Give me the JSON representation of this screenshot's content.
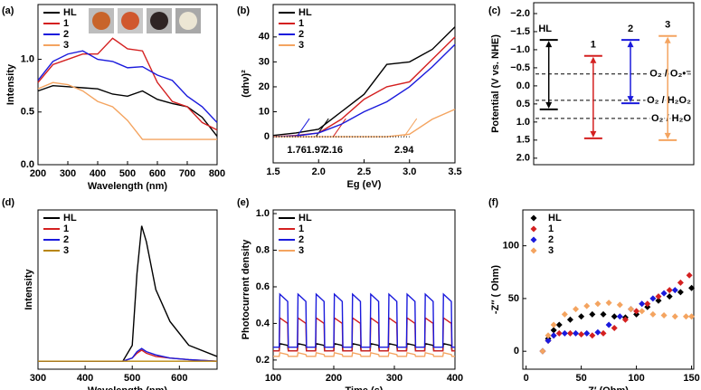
{
  "chart_data": [
    {
      "type": "line",
      "label": "(a)",
      "x_label": "Wavelength (nm)",
      "y_label": "Intensity",
      "legend": "upper left",
      "xlim": [
        200,
        800
      ],
      "ylim": [
        0,
        1.52
      ],
      "xticks": [
        200,
        300,
        400,
        500,
        600,
        700,
        800
      ],
      "yticks": [
        {
          "value": 0,
          "label": "0.0"
        },
        0.5,
        {
          "value": 1,
          "label": "1.0"
        }
      ],
      "x": [
        200,
        250,
        300,
        350,
        400,
        450,
        500,
        550,
        600,
        650,
        700,
        750,
        800
      ],
      "series": [
        {
          "name": "HL",
          "color": "#000000",
          "values": [
            0.7,
            0.75,
            0.74,
            0.73,
            0.72,
            0.67,
            0.65,
            0.7,
            0.62,
            0.58,
            0.55,
            0.45,
            0.27
          ]
        },
        {
          "name": "1",
          "color": "#d42020",
          "values": [
            0.78,
            0.95,
            1.0,
            1.05,
            1.05,
            1.2,
            1.1,
            1.08,
            0.78,
            0.6,
            0.55,
            0.4,
            0.33
          ]
        },
        {
          "name": "2",
          "color": "#1a1adc",
          "values": [
            0.8,
            0.98,
            1.05,
            1.08,
            1.0,
            0.98,
            0.92,
            0.93,
            0.85,
            0.8,
            0.65,
            0.55,
            0.4
          ]
        },
        {
          "name": "3",
          "color": "#f4a460",
          "values": [
            0.72,
            0.78,
            0.76,
            0.7,
            0.6,
            0.55,
            0.42,
            0.24,
            0.24,
            0.24,
            0.24,
            0.24,
            0.24
          ]
        }
      ]
    },
    {
      "type": "line",
      "label": "(b)",
      "x_label": "Eg (eV)",
      "y_label": "(αhν)²",
      "legend": "upper left",
      "xlim": [
        1.5,
        3.5
      ],
      "ylim": [
        -10.5,
        53
      ],
      "xticks": [
        1.5,
        {
          "value": 2,
          "label": "2.0"
        },
        2.5,
        {
          "value": 3,
          "label": "3.0"
        },
        3.5
      ],
      "yticks": [
        0,
        10,
        20,
        30,
        40
      ],
      "x": [
        1.5,
        1.75,
        2.0,
        2.25,
        2.5,
        2.75,
        3.0,
        3.25,
        3.5
      ],
      "series": [
        {
          "name": "HL",
          "color": "#000000",
          "eg": 1.97,
          "values": [
            0.5,
            1.5,
            3,
            10,
            17,
            29,
            30,
            35,
            44
          ]
        },
        {
          "name": "1",
          "color": "#d42020",
          "eg": 2.16,
          "values": [
            0,
            0.5,
            1.5,
            7,
            15,
            20,
            22,
            31,
            40
          ]
        },
        {
          "name": "2",
          "color": "#1a1adc",
          "eg": 1.76,
          "values": [
            0,
            0.3,
            1.5,
            5,
            10,
            14,
            20,
            28,
            37
          ]
        },
        {
          "name": "3",
          "color": "#f4a460",
          "eg": 2.94,
          "values": [
            0,
            0,
            0,
            0,
            0,
            0,
            1,
            7,
            11
          ]
        }
      ]
    },
    {
      "type": "energy",
      "label": "(c)",
      "y_label": "Potential (V vs. NHE)",
      "ylim": [
        2.18,
        -2.3
      ],
      "yticks": [
        {
          "value": -2,
          "label": "−2.0"
        },
        {
          "value": -1.5,
          "label": "−1.5"
        },
        {
          "value": -1,
          "label": "−1.0"
        },
        {
          "value": -0.5,
          "label": "−0.5"
        },
        {
          "value": 0,
          "label": "0.0"
        },
        0.5,
        {
          "value": 1,
          "label": "1.0"
        },
        1.5,
        {
          "value": 2,
          "label": "2.0"
        }
      ],
      "series": [
        {
          "name": "HL",
          "color": "#000000",
          "values": [
            -1.27,
            0.65
          ]
        },
        {
          "name": "1",
          "color": "#d42020",
          "values": [
            -0.83,
            1.45
          ]
        },
        {
          "name": "2",
          "color": "#1a1adc",
          "values": [
            -1.27,
            0.48
          ]
        },
        {
          "name": "3",
          "color": "#f4a460",
          "values": [
            -1.38,
            1.5
          ]
        }
      ],
      "references": [
        {
          "label": "O₂ / O₂•⁻",
          "value": -0.33
        },
        {
          "label": "O₂ / H₂O₂",
          "value": 0.4
        },
        {
          "label": "O₂ / H₂O",
          "value": 0.9
        }
      ]
    },
    {
      "type": "line",
      "label": "(d)",
      "x_label": "Wavelength (nm)",
      "y_label": "Intensity",
      "legend": "upper left",
      "xlim": [
        300,
        680
      ],
      "ylim": [
        0,
        1
      ],
      "xticks": [
        300,
        400,
        500,
        600
      ],
      "x": [
        300,
        400,
        480,
        500,
        510,
        520,
        530,
        550,
        580,
        620,
        680
      ],
      "series": [
        {
          "name": "HL",
          "color": "#000000",
          "values": [
            0.05,
            0.05,
            0.05,
            0.15,
            0.6,
            0.9,
            0.8,
            0.5,
            0.3,
            0.15,
            0.08
          ]
        },
        {
          "name": "1",
          "color": "#d42020",
          "values": [
            0.05,
            0.05,
            0.05,
            0.07,
            0.1,
            0.12,
            0.1,
            0.08,
            0.07,
            0.06,
            0.05
          ]
        },
        {
          "name": "2",
          "color": "#1a1adc",
          "values": [
            0.05,
            0.05,
            0.05,
            0.07,
            0.11,
            0.13,
            0.11,
            0.09,
            0.07,
            0.06,
            0.05
          ]
        },
        {
          "name": "3",
          "color": "#b8860b",
          "values": [
            0.05,
            0.05,
            0.05,
            0.05,
            0.05,
            0.05,
            0.05,
            0.05,
            0.05,
            0.05,
            0.05
          ]
        }
      ]
    },
    {
      "type": "line",
      "label": "(e)",
      "x_label": "Time (s)",
      "y_label": "Photocurrent density",
      "legend": "upper left",
      "xlim": [
        100,
        400
      ],
      "ylim": [
        0.15,
        1.02
      ],
      "xticks": [
        100,
        200,
        300,
        400
      ],
      "yticks": [
        0.2,
        0.4,
        0.6,
        0.8,
        {
          "value": 1,
          "label": "1.0"
        }
      ],
      "x": [
        100,
        110,
        111,
        124,
        125,
        140,
        141,
        154,
        155,
        170,
        171,
        184,
        185,
        200,
        201,
        214,
        215,
        230,
        231,
        244,
        245,
        260,
        261,
        274,
        275,
        290,
        291,
        304,
        305,
        320,
        321,
        334,
        335,
        350,
        351,
        364,
        365,
        380,
        381,
        394,
        395,
        400
      ],
      "series": [
        {
          "name": "HL",
          "color": "#000000",
          "values": [
            0.25,
            0.25,
            0.29,
            0.28,
            0.25,
            0.25,
            0.29,
            0.28,
            0.25,
            0.25,
            0.29,
            0.28,
            0.25,
            0.25,
            0.29,
            0.28,
            0.25,
            0.25,
            0.29,
            0.28,
            0.25,
            0.25,
            0.29,
            0.28,
            0.25,
            0.25,
            0.29,
            0.28,
            0.25,
            0.25,
            0.29,
            0.28,
            0.25,
            0.25,
            0.29,
            0.28,
            0.25,
            0.25,
            0.29,
            0.28,
            0.25,
            0.25
          ]
        },
        {
          "name": "1",
          "color": "#d42020",
          "values": [
            0.25,
            0.25,
            0.43,
            0.4,
            0.25,
            0.25,
            0.43,
            0.4,
            0.25,
            0.25,
            0.43,
            0.4,
            0.25,
            0.25,
            0.43,
            0.4,
            0.25,
            0.25,
            0.43,
            0.4,
            0.25,
            0.25,
            0.43,
            0.4,
            0.25,
            0.25,
            0.43,
            0.4,
            0.25,
            0.25,
            0.43,
            0.4,
            0.25,
            0.25,
            0.43,
            0.4,
            0.25,
            0.25,
            0.43,
            0.4,
            0.25,
            0.25
          ]
        },
        {
          "name": "2",
          "color": "#1a1adc",
          "values": [
            0.27,
            0.27,
            0.56,
            0.52,
            0.27,
            0.27,
            0.56,
            0.52,
            0.27,
            0.27,
            0.56,
            0.52,
            0.27,
            0.27,
            0.56,
            0.52,
            0.27,
            0.27,
            0.56,
            0.52,
            0.27,
            0.27,
            0.56,
            0.52,
            0.27,
            0.27,
            0.56,
            0.52,
            0.27,
            0.27,
            0.56,
            0.52,
            0.27,
            0.27,
            0.56,
            0.52,
            0.27,
            0.27,
            0.56,
            0.52,
            0.27,
            0.27
          ]
        },
        {
          "name": "3",
          "color": "#f4a460",
          "values": [
            0.22,
            0.22,
            0.24,
            0.23,
            0.22,
            0.22,
            0.24,
            0.23,
            0.22,
            0.22,
            0.24,
            0.23,
            0.22,
            0.22,
            0.24,
            0.23,
            0.22,
            0.22,
            0.24,
            0.23,
            0.22,
            0.22,
            0.24,
            0.23,
            0.22,
            0.22,
            0.24,
            0.23,
            0.22,
            0.22,
            0.24,
            0.23,
            0.22,
            0.22,
            0.24,
            0.23,
            0.22,
            0.22,
            0.24,
            0.23,
            0.22,
            0.22
          ]
        }
      ]
    },
    {
      "type": "scatter",
      "label": "(f)",
      "x_label": "Z′ (Ohm)",
      "y_label": "-Z″ ( Ohm)",
      "legend": "upper left",
      "xlim": [
        -3,
        152
      ],
      "ylim": [
        -17,
        134
      ],
      "xticks": [
        0,
        50,
        100,
        150
      ],
      "yticks": [
        0,
        50,
        100
      ],
      "series": [
        {
          "name": "HL",
          "color": "#000000",
          "x": [
            15,
            20,
            25,
            30,
            40,
            50,
            60,
            70,
            80,
            90,
            100,
            110,
            120,
            130,
            140,
            150
          ],
          "values": [
            0,
            12,
            20,
            25,
            30,
            33,
            35,
            35,
            33,
            32,
            35,
            42,
            48,
            52,
            56,
            60
          ]
        },
        {
          "name": "1",
          "color": "#d42020",
          "x": [
            15,
            20,
            25,
            30,
            40,
            50,
            60,
            70,
            80,
            90,
            100,
            110,
            120,
            130,
            140,
            148
          ],
          "values": [
            0,
            10,
            15,
            17,
            17,
            16,
            15,
            17,
            22,
            30,
            38,
            45,
            52,
            58,
            65,
            72
          ]
        },
        {
          "name": "2",
          "color": "#1a1adc",
          "x": [
            15,
            20,
            25,
            35,
            45,
            55,
            65,
            75,
            85,
            95,
            105,
            115,
            125,
            135
          ],
          "values": [
            0,
            10,
            15,
            17,
            17,
            17,
            18,
            25,
            33,
            40,
            45,
            50,
            55,
            58
          ]
        },
        {
          "name": "3",
          "color": "#f4a460",
          "x": [
            15,
            20,
            25,
            35,
            45,
            55,
            65,
            75,
            85,
            95,
            105,
            115,
            125,
            135,
            145,
            150
          ],
          "values": [
            0,
            15,
            25,
            35,
            40,
            43,
            45,
            46,
            44,
            40,
            38,
            35,
            34,
            33,
            33,
            33
          ]
        }
      ]
    }
  ]
}
